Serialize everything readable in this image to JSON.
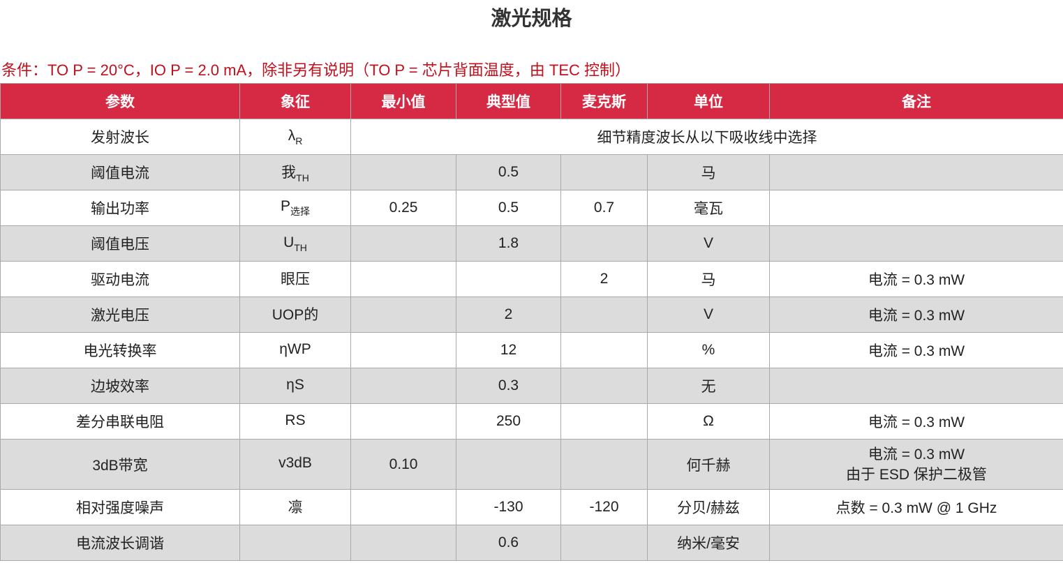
{
  "title": "激光规格",
  "conditions": "条件：TO P = 20°C，IO P = 2.0 mA，除非另有说明（TO P = 芯片背面温度，由 TEC 控制）",
  "colors": {
    "header_bg": "#d62a44",
    "conditions_text": "#c0101c",
    "stripe_bg": "#dcdcdc"
  },
  "table": {
    "headers": {
      "param": "参数",
      "symbol": "象征",
      "min": "最小值",
      "typ": "典型值",
      "max": "麦克斯",
      "unit": "单位",
      "note": "备注"
    },
    "rows": [
      {
        "param": "发射波长",
        "symbol": "λ",
        "symbol_sub": "R",
        "merged": "细节精度波长从以下吸收线中选择"
      },
      {
        "param": "阈值电流",
        "symbol": "我",
        "symbol_sub": "TH",
        "min": "",
        "typ": "0.5",
        "max": "",
        "unit": "马",
        "note": ""
      },
      {
        "param": "输出功率",
        "symbol": "P",
        "symbol_sub": "选择",
        "min": "0.25",
        "typ": "0.5",
        "max": "0.7",
        "unit": "毫瓦",
        "note": ""
      },
      {
        "param": "阈值电压",
        "symbol": "U",
        "symbol_sub": "TH",
        "min": "",
        "typ": "1.8",
        "max": "",
        "unit": "V",
        "note": ""
      },
      {
        "param": "驱动电流",
        "symbol": "眼压",
        "symbol_sub": "",
        "min": "",
        "typ": "",
        "max": "2",
        "unit": "马",
        "note": "电流 = 0.3 mW"
      },
      {
        "param": "激光电压",
        "symbol": "UOP的",
        "symbol_sub": "",
        "min": "",
        "typ": "2",
        "max": "",
        "unit": "V",
        "note": "电流 = 0.3 mW"
      },
      {
        "param": "电光转换率",
        "symbol": "ηWP",
        "symbol_sub": "",
        "min": "",
        "typ": "12",
        "max": "",
        "unit": "%",
        "note": "电流 = 0.3 mW"
      },
      {
        "param": "边坡效率",
        "symbol": "ηS",
        "symbol_sub": "",
        "min": "",
        "typ": "0.3",
        "max": "",
        "unit": "无",
        "note": ""
      },
      {
        "param": "差分串联电阻",
        "symbol": "RS",
        "symbol_sub": "",
        "min": "",
        "typ": "250",
        "max": "",
        "unit": "Ω",
        "note": "电流 = 0.3 mW"
      },
      {
        "param": "3dB带宽",
        "symbol": "v3dB",
        "symbol_sub": "",
        "min": "0.10",
        "typ": "",
        "max": "",
        "unit": "何千赫",
        "note": "电流 = 0.3 mW",
        "note2": "由于 ESD 保护二极管"
      },
      {
        "param": "相对强度噪声",
        "symbol": "凛",
        "symbol_sub": "",
        "min": "",
        "typ": "-130",
        "max": "-120",
        "unit": "分贝/赫兹",
        "note": "点数 = 0.3 mW @ 1 GHz"
      },
      {
        "param": "电流波长调谐",
        "symbol": "",
        "symbol_sub": "",
        "min": "",
        "typ": "0.6",
        "max": "",
        "unit": "纳米/毫安",
        "note": ""
      }
    ]
  }
}
